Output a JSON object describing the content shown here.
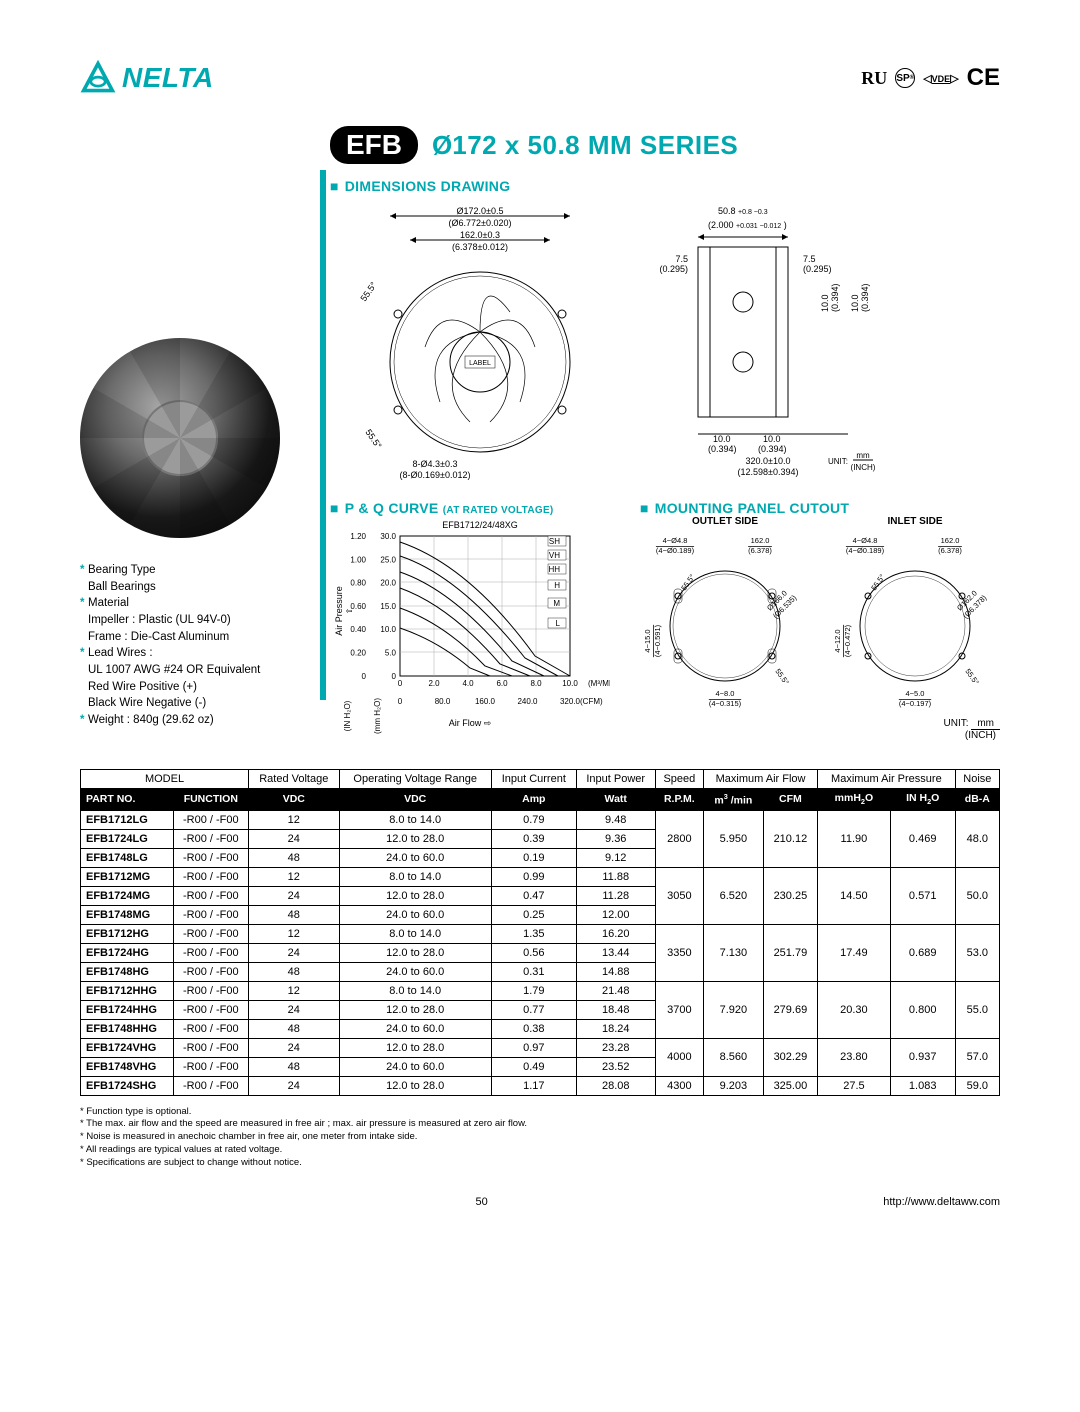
{
  "brand": "NELTA",
  "certifications": [
    "RU",
    "SP",
    "VDE",
    "CE"
  ],
  "badge": "EFB",
  "series_prefix": "Ø",
  "series_title": "172 x 50.8 MM SERIES",
  "sections": {
    "dimensions": "DIMENSIONS DRAWING",
    "pq": "P & Q CURVE",
    "pq_sub": "(AT RATED VOLTAGE)",
    "mounting": "MOUNTING PANEL CUTOUT"
  },
  "specs": {
    "bearing_label": "Bearing Type",
    "bearing_value": "Ball Bearings",
    "material_label": "Material",
    "material_line1": "Impeller : Plastic (UL 94V-0)",
    "material_line2": "Frame : Die-Cast Aluminum",
    "leads_label": "Lead Wires :",
    "leads_line1": "UL 1007 AWG #24 OR Equivalent",
    "leads_line2": "Red Wire Positive (+)",
    "leads_line3": "Black Wire Negative (-)",
    "weight_label": "Weight : 840g (29.62 oz)"
  },
  "dimensions": {
    "d_outer": "Ø172.0±0.5",
    "d_outer_in": "(Ø6.772±0.020)",
    "hole_sp": "162.0±0.3",
    "hole_sp_in": "(6.378±0.012)",
    "angle": "55.5°",
    "label_txt": "LABEL",
    "holes": "8-Ø4.3±0.3",
    "holes_in": "(8-Ø0.169±0.012)",
    "depth": "50.8",
    "depth_tol": "+0.8 −0.3",
    "depth_in": "(2.000",
    "depth_in_tol": "+0.031 −0.012",
    "depth_in_close": ")",
    "side_7_5": "7.5",
    "side_7_5_in": "(0.295)",
    "side_10": "10.0",
    "side_10_in": "(0.394)",
    "overall": "320.0±10.0",
    "overall_in": "(12.598±0.394)",
    "unit_label": "UNIT:",
    "unit_mm": "mm",
    "unit_inch": "(INCH)"
  },
  "pq_chart": {
    "title": "EFB1712/24/48XG",
    "series_labels": [
      "SH",
      "VH",
      "HH",
      "H",
      "M",
      "L"
    ],
    "y_left_label": "(IN H₂O)",
    "y_right_label": "(mm H₂O)",
    "x_label": "Air Flow",
    "x_unit_top": "(M³/MIN)",
    "x_unit_bot": "(CFM)",
    "y_left_ticks": [
      "1.20",
      "1.00",
      "0.80",
      "0.60",
      "0.40",
      "0.20",
      "0"
    ],
    "y_right_ticks": [
      "30.0",
      "25.0",
      "20.0",
      "15.0",
      "10.0",
      "5.0",
      "0"
    ],
    "x_top_ticks": [
      "0",
      "2.0",
      "4.0",
      "6.0",
      "8.0",
      "10.0"
    ],
    "x_bot_ticks": [
      "0",
      "80.0",
      "160.0",
      "240.0",
      "320.0"
    ],
    "y_axis_name": "Air Pressure"
  },
  "mounting": {
    "outlet_label": "OUTLET SIDE",
    "inlet_label": "INLET SIDE",
    "hole": "4−Ø4.8",
    "hole_in": "(4−Ø0.189)",
    "sp": "162.0",
    "sp_in": "(6.378)",
    "d1": "Ø166.0",
    "d1_in": "(Ø6.535)",
    "d2": "Ø162.0",
    "d2_in": "(Ø6.378)",
    "ang": "55.5°",
    "out_v": "4−15.0",
    "out_v_in": "(4−0.591)",
    "out_h": "4−8.0",
    "out_h_in": "(4−0.315)",
    "in_v": "4−12.0",
    "in_v_in": "(4−0.472)",
    "in_h": "4−5.0",
    "in_h_in": "(4−0.197)"
  },
  "table": {
    "headers": {
      "model": "MODEL",
      "rated_v": "Rated Voltage",
      "op_range": "Operating Voltage Range",
      "in_cur": "Input Current",
      "in_pow": "Input Power",
      "speed": "Speed",
      "max_af": "Maximum Air Flow",
      "max_ap": "Maximum Air Pressure",
      "noise": "Noise"
    },
    "subheaders": {
      "partno": "PART NO.",
      "function": "FUNCTION",
      "vdc1": "VDC",
      "vdc2": "VDC",
      "amp": "Amp",
      "watt": "Watt",
      "rpm": "R.P.M.",
      "m3min": "m³ /min",
      "cfm": "CFM",
      "mmh2o": "mmH₂O",
      "inh2o": "IN H₂O",
      "dba": "dB-A"
    },
    "groups": [
      {
        "shared": {
          "rpm": "2800",
          "m3min": "5.950",
          "cfm": "210.12",
          "mmh2o": "11.90",
          "inh2o": "0.469",
          "dba": "48.0"
        },
        "rows": [
          {
            "pn": "EFB1712LG",
            "fn": "-R00 / -F00",
            "vdc": "12",
            "range": "8.0 to 14.0",
            "amp": "0.79",
            "watt": "9.48"
          },
          {
            "pn": "EFB1724LG",
            "fn": "-R00 / -F00",
            "vdc": "24",
            "range": "12.0 to 28.0",
            "amp": "0.39",
            "watt": "9.36"
          },
          {
            "pn": "EFB1748LG",
            "fn": "-R00 / -F00",
            "vdc": "48",
            "range": "24.0 to 60.0",
            "amp": "0.19",
            "watt": "9.12"
          }
        ]
      },
      {
        "shared": {
          "rpm": "3050",
          "m3min": "6.520",
          "cfm": "230.25",
          "mmh2o": "14.50",
          "inh2o": "0.571",
          "dba": "50.0"
        },
        "rows": [
          {
            "pn": "EFB1712MG",
            "fn": "-R00 / -F00",
            "vdc": "12",
            "range": "8.0 to 14.0",
            "amp": "0.99",
            "watt": "11.88"
          },
          {
            "pn": "EFB1724MG",
            "fn": "-R00 / -F00",
            "vdc": "24",
            "range": "12.0 to 28.0",
            "amp": "0.47",
            "watt": "11.28"
          },
          {
            "pn": "EFB1748MG",
            "fn": "-R00 / -F00",
            "vdc": "48",
            "range": "24.0 to 60.0",
            "amp": "0.25",
            "watt": "12.00"
          }
        ]
      },
      {
        "shared": {
          "rpm": "3350",
          "m3min": "7.130",
          "cfm": "251.79",
          "mmh2o": "17.49",
          "inh2o": "0.689",
          "dba": "53.0"
        },
        "rows": [
          {
            "pn": "EFB1712HG",
            "fn": "-R00 / -F00",
            "vdc": "12",
            "range": "8.0 to 14.0",
            "amp": "1.35",
            "watt": "16.20"
          },
          {
            "pn": "EFB1724HG",
            "fn": "-R00 / -F00",
            "vdc": "24",
            "range": "12.0 to 28.0",
            "amp": "0.56",
            "watt": "13.44"
          },
          {
            "pn": "EFB1748HG",
            "fn": "-R00 / -F00",
            "vdc": "48",
            "range": "24.0 to 60.0",
            "amp": "0.31",
            "watt": "14.88"
          }
        ]
      },
      {
        "shared": {
          "rpm": "3700",
          "m3min": "7.920",
          "cfm": "279.69",
          "mmh2o": "20.30",
          "inh2o": "0.800",
          "dba": "55.0"
        },
        "rows": [
          {
            "pn": "EFB1712HHG",
            "fn": "-R00 / -F00",
            "vdc": "12",
            "range": "8.0 to 14.0",
            "amp": "1.79",
            "watt": "21.48"
          },
          {
            "pn": "EFB1724HHG",
            "fn": "-R00 / -F00",
            "vdc": "24",
            "range": "12.0 to 28.0",
            "amp": "0.77",
            "watt": "18.48"
          },
          {
            "pn": "EFB1748HHG",
            "fn": "-R00 / -F00",
            "vdc": "48",
            "range": "24.0 to 60.0",
            "amp": "0.38",
            "watt": "18.24"
          }
        ]
      },
      {
        "shared": {
          "rpm": "4000",
          "m3min": "8.560",
          "cfm": "302.29",
          "mmh2o": "23.80",
          "inh2o": "0.937",
          "dba": "57.0"
        },
        "rows": [
          {
            "pn": "EFB1724VHG",
            "fn": "-R00 / -F00",
            "vdc": "24",
            "range": "12.0 to 28.0",
            "amp": "0.97",
            "watt": "23.28"
          },
          {
            "pn": "EFB1748VHG",
            "fn": "-R00 / -F00",
            "vdc": "48",
            "range": "24.0 to 60.0",
            "amp": "0.49",
            "watt": "23.52"
          }
        ]
      },
      {
        "shared": {
          "rpm": "4300",
          "m3min": "9.203",
          "cfm": "325.00",
          "mmh2o": "27.5",
          "inh2o": "1.083",
          "dba": "59.0"
        },
        "rows": [
          {
            "pn": "EFB1724SHG",
            "fn": "-R00 / -F00",
            "vdc": "24",
            "range": "12.0 to 28.0",
            "amp": "1.17",
            "watt": "28.08"
          }
        ]
      }
    ]
  },
  "footnotes": [
    "Function type is optional.",
    "The max. air flow and the speed are measured in free air ; max. air pressure is measured at zero air flow.",
    "Noise is measured in anechoic chamber in free air, one meter from intake side.",
    "All readings are typical values at rated voltage.",
    "Specifications are subject to change without notice."
  ],
  "page_number": "50",
  "url": "http://www.deltaww.com"
}
